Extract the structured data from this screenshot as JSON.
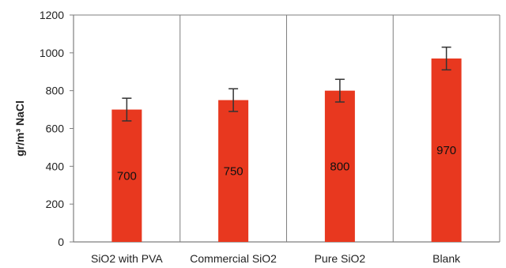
{
  "chart_data": {
    "type": "bar",
    "categories": [
      "SiO2 with PVA",
      "Commercial SiO2",
      "Pure SiO2",
      "Blank"
    ],
    "values": [
      700,
      750,
      800,
      970
    ],
    "error": [
      60,
      60,
      60,
      60
    ],
    "data_labels": [
      "700",
      "750",
      "800",
      "970"
    ],
    "title": "",
    "xlabel": "",
    "ylabel": "gr/m³ NaCl",
    "ylim": [
      0,
      1200
    ],
    "yticks": [
      0,
      200,
      400,
      600,
      800,
      1000,
      1200
    ],
    "ytick_labels": [
      "0",
      "200",
      "400",
      "600",
      "800",
      "1000",
      "1200"
    ],
    "grid": false,
    "bar_color": "#e8381f",
    "error_bar_color": "#333333",
    "frame_color": "#7f7f7f"
  }
}
